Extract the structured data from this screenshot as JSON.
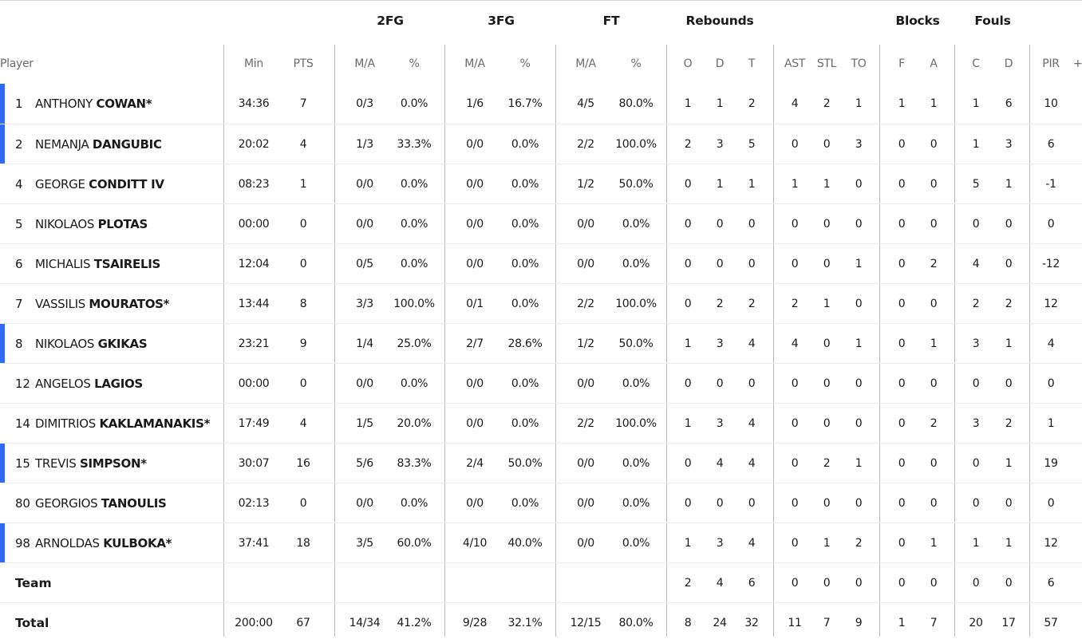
{
  "groups": {
    "twofg": "2FG",
    "threefg": "3FG",
    "ft": "FT",
    "rebounds": "Rebounds",
    "blocks": "Blocks",
    "fouls": "Fouls"
  },
  "columns": {
    "player": "Player",
    "min": "Min",
    "pts": "PTS",
    "fg2_ma": "M/A",
    "fg2_pct": "%",
    "fg3_ma": "M/A",
    "fg3_pct": "%",
    "ft_ma": "M/A",
    "ft_pct": "%",
    "reb_o": "O",
    "reb_d": "D",
    "reb_t": "T",
    "ast": "AST",
    "stl": "STL",
    "to": "TO",
    "blk_f": "F",
    "blk_a": "A",
    "foul_c": "C",
    "foul_d": "D",
    "pir": "PIR",
    "plus_minus": "+/"
  },
  "accent_color": "#2f6bff",
  "players": [
    {
      "num": "1",
      "first": "ANTHONY",
      "last": "COWAN*",
      "starter": true,
      "min": "34:36",
      "pts": "7",
      "fg2_ma": "0/3",
      "fg2_pct": "0.0%",
      "fg3_ma": "1/6",
      "fg3_pct": "16.7%",
      "ft_ma": "4/5",
      "ft_pct": "80.0%",
      "reb_o": "1",
      "reb_d": "1",
      "reb_t": "2",
      "ast": "4",
      "stl": "2",
      "to": "1",
      "blk_f": "1",
      "blk_a": "1",
      "foul_c": "1",
      "foul_d": "6",
      "pir": "10"
    },
    {
      "num": "2",
      "first": "NEMANJA",
      "last": "DANGUBIC",
      "starter": true,
      "min": "20:02",
      "pts": "4",
      "fg2_ma": "1/3",
      "fg2_pct": "33.3%",
      "fg3_ma": "0/0",
      "fg3_pct": "0.0%",
      "ft_ma": "2/2",
      "ft_pct": "100.0%",
      "reb_o": "2",
      "reb_d": "3",
      "reb_t": "5",
      "ast": "0",
      "stl": "0",
      "to": "3",
      "blk_f": "0",
      "blk_a": "0",
      "foul_c": "1",
      "foul_d": "3",
      "pir": "6"
    },
    {
      "num": "4",
      "first": "GEORGE",
      "last": "CONDITT IV",
      "starter": false,
      "min": "08:23",
      "pts": "1",
      "fg2_ma": "0/0",
      "fg2_pct": "0.0%",
      "fg3_ma": "0/0",
      "fg3_pct": "0.0%",
      "ft_ma": "1/2",
      "ft_pct": "50.0%",
      "reb_o": "0",
      "reb_d": "1",
      "reb_t": "1",
      "ast": "1",
      "stl": "1",
      "to": "0",
      "blk_f": "0",
      "blk_a": "0",
      "foul_c": "5",
      "foul_d": "1",
      "pir": "-1"
    },
    {
      "num": "5",
      "first": "NIKOLAOS",
      "last": "PLOTAS",
      "starter": false,
      "min": "00:00",
      "pts": "0",
      "fg2_ma": "0/0",
      "fg2_pct": "0.0%",
      "fg3_ma": "0/0",
      "fg3_pct": "0.0%",
      "ft_ma": "0/0",
      "ft_pct": "0.0%",
      "reb_o": "0",
      "reb_d": "0",
      "reb_t": "0",
      "ast": "0",
      "stl": "0",
      "to": "0",
      "blk_f": "0",
      "blk_a": "0",
      "foul_c": "0",
      "foul_d": "0",
      "pir": "0"
    },
    {
      "num": "6",
      "first": "MICHALIS",
      "last": "TSAIRELIS",
      "starter": false,
      "min": "12:04",
      "pts": "0",
      "fg2_ma": "0/5",
      "fg2_pct": "0.0%",
      "fg3_ma": "0/0",
      "fg3_pct": "0.0%",
      "ft_ma": "0/0",
      "ft_pct": "0.0%",
      "reb_o": "0",
      "reb_d": "0",
      "reb_t": "0",
      "ast": "0",
      "stl": "0",
      "to": "1",
      "blk_f": "0",
      "blk_a": "2",
      "foul_c": "4",
      "foul_d": "0",
      "pir": "-12"
    },
    {
      "num": "7",
      "first": "VASSILIS",
      "last": "MOURATOS*",
      "starter": false,
      "min": "13:44",
      "pts": "8",
      "fg2_ma": "3/3",
      "fg2_pct": "100.0%",
      "fg3_ma": "0/1",
      "fg3_pct": "0.0%",
      "ft_ma": "2/2",
      "ft_pct": "100.0%",
      "reb_o": "0",
      "reb_d": "2",
      "reb_t": "2",
      "ast": "2",
      "stl": "1",
      "to": "0",
      "blk_f": "0",
      "blk_a": "0",
      "foul_c": "2",
      "foul_d": "2",
      "pir": "12"
    },
    {
      "num": "8",
      "first": "NIKOLAOS",
      "last": "GKIKAS",
      "starter": true,
      "min": "23:21",
      "pts": "9",
      "fg2_ma": "1/4",
      "fg2_pct": "25.0%",
      "fg3_ma": "2/7",
      "fg3_pct": "28.6%",
      "ft_ma": "1/2",
      "ft_pct": "50.0%",
      "reb_o": "1",
      "reb_d": "3",
      "reb_t": "4",
      "ast": "4",
      "stl": "0",
      "to": "1",
      "blk_f": "0",
      "blk_a": "1",
      "foul_c": "3",
      "foul_d": "1",
      "pir": "4"
    },
    {
      "num": "12",
      "first": "ANGELOS",
      "last": "LAGIOS",
      "starter": false,
      "min": "00:00",
      "pts": "0",
      "fg2_ma": "0/0",
      "fg2_pct": "0.0%",
      "fg3_ma": "0/0",
      "fg3_pct": "0.0%",
      "ft_ma": "0/0",
      "ft_pct": "0.0%",
      "reb_o": "0",
      "reb_d": "0",
      "reb_t": "0",
      "ast": "0",
      "stl": "0",
      "to": "0",
      "blk_f": "0",
      "blk_a": "0",
      "foul_c": "0",
      "foul_d": "0",
      "pir": "0"
    },
    {
      "num": "14",
      "first": "DIMITRIOS",
      "last": "KAKLAMANAKIS*",
      "starter": false,
      "min": "17:49",
      "pts": "4",
      "fg2_ma": "1/5",
      "fg2_pct": "20.0%",
      "fg3_ma": "0/0",
      "fg3_pct": "0.0%",
      "ft_ma": "2/2",
      "ft_pct": "100.0%",
      "reb_o": "1",
      "reb_d": "3",
      "reb_t": "4",
      "ast": "0",
      "stl": "0",
      "to": "0",
      "blk_f": "0",
      "blk_a": "2",
      "foul_c": "3",
      "foul_d": "2",
      "pir": "1"
    },
    {
      "num": "15",
      "first": "TREVIS",
      "last": "SIMPSON*",
      "starter": true,
      "min": "30:07",
      "pts": "16",
      "fg2_ma": "5/6",
      "fg2_pct": "83.3%",
      "fg3_ma": "2/4",
      "fg3_pct": "50.0%",
      "ft_ma": "0/0",
      "ft_pct": "0.0%",
      "reb_o": "0",
      "reb_d": "4",
      "reb_t": "4",
      "ast": "0",
      "stl": "2",
      "to": "1",
      "blk_f": "0",
      "blk_a": "0",
      "foul_c": "0",
      "foul_d": "1",
      "pir": "19"
    },
    {
      "num": "80",
      "first": "GEORGIOS",
      "last": "TANOULIS",
      "starter": false,
      "min": "02:13",
      "pts": "0",
      "fg2_ma": "0/0",
      "fg2_pct": "0.0%",
      "fg3_ma": "0/0",
      "fg3_pct": "0.0%",
      "ft_ma": "0/0",
      "ft_pct": "0.0%",
      "reb_o": "0",
      "reb_d": "0",
      "reb_t": "0",
      "ast": "0",
      "stl": "0",
      "to": "0",
      "blk_f": "0",
      "blk_a": "0",
      "foul_c": "0",
      "foul_d": "0",
      "pir": "0"
    },
    {
      "num": "98",
      "first": "ARNOLDAS",
      "last": "KULBOKA*",
      "starter": true,
      "min": "37:41",
      "pts": "18",
      "fg2_ma": "3/5",
      "fg2_pct": "60.0%",
      "fg3_ma": "4/10",
      "fg3_pct": "40.0%",
      "ft_ma": "0/0",
      "ft_pct": "0.0%",
      "reb_o": "1",
      "reb_d": "3",
      "reb_t": "4",
      "ast": "0",
      "stl": "1",
      "to": "2",
      "blk_f": "0",
      "blk_a": "1",
      "foul_c": "1",
      "foul_d": "1",
      "pir": "12"
    }
  ],
  "team": {
    "label": "Team",
    "reb_o": "2",
    "reb_d": "4",
    "reb_t": "6",
    "ast": "0",
    "stl": "0",
    "to": "0",
    "blk_f": "0",
    "blk_a": "0",
    "foul_c": "0",
    "foul_d": "0",
    "pir": "6"
  },
  "total": {
    "label": "Total",
    "min": "200:00",
    "pts": "67",
    "fg2_ma": "14/34",
    "fg2_pct": "41.2%",
    "fg3_ma": "9/28",
    "fg3_pct": "32.1%",
    "ft_ma": "12/15",
    "ft_pct": "80.0%",
    "reb_o": "8",
    "reb_d": "24",
    "reb_t": "32",
    "ast": "11",
    "stl": "7",
    "to": "9",
    "blk_f": "1",
    "blk_a": "7",
    "foul_c": "20",
    "foul_d": "17",
    "pir": "57"
  }
}
